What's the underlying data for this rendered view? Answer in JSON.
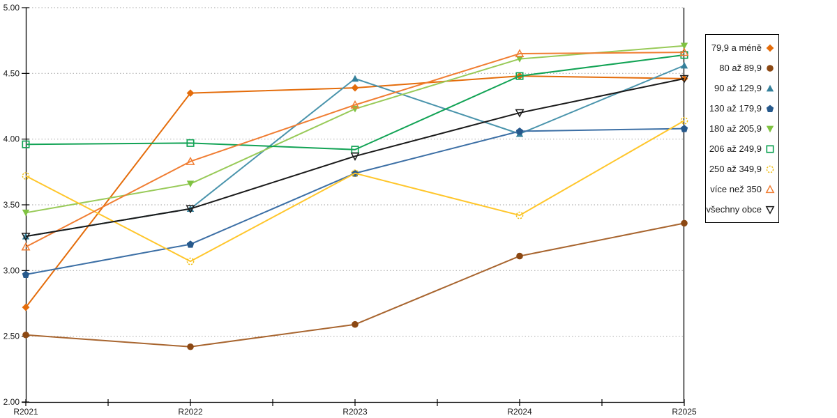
{
  "chart_data": {
    "type": "line",
    "title": "",
    "xlabel": "",
    "ylabel": "",
    "categories": [
      "R2021",
      "R2022",
      "R2023",
      "R2024",
      "R2025"
    ],
    "ylim": [
      2.0,
      5.0
    ],
    "ytick_step": 0.5,
    "ytick_labels": [
      "2.00",
      "2.50",
      "3.00",
      "3.50",
      "4.00",
      "4.50",
      "5.00"
    ],
    "grid": "horizontal dotted lines at each 0.50 step",
    "legend_position": "right outside, boxed, marker to the right of label",
    "series": [
      {
        "name": "79,9 a méně",
        "marker": "diamond",
        "line_color": "#E46C0A",
        "marker_color": "#E46C0A",
        "values": [
          2.72,
          4.35,
          4.39,
          4.48,
          4.46
        ]
      },
      {
        "name": "80 až 89,9",
        "marker": "circle",
        "line_color": "#A8652F",
        "marker_color": "#8C4813",
        "values": [
          2.51,
          2.42,
          2.59,
          3.11,
          3.36
        ]
      },
      {
        "name": "90 až 129,9",
        "marker": "triangle-up",
        "line_color": "#4A94AC",
        "marker_color": "#35809B",
        "values": [
          3.26,
          3.47,
          4.46,
          4.04,
          4.56
        ]
      },
      {
        "name": "130 až 179,9",
        "marker": "pentagon",
        "line_color": "#3C6FA5",
        "marker_color": "#27598C",
        "values": [
          2.97,
          3.2,
          3.74,
          4.06,
          4.08
        ]
      },
      {
        "name": "180 až 205,9",
        "marker": "triangle-down",
        "line_color": "#98CA58",
        "marker_color": "#7FC241",
        "values": [
          3.44,
          3.66,
          4.23,
          4.61,
          4.71
        ]
      },
      {
        "name": "206 až 249,9",
        "marker": "square-open",
        "line_color": "#12A355",
        "marker_color": "#12A355",
        "values": [
          3.96,
          3.97,
          3.92,
          4.48,
          4.64
        ]
      },
      {
        "name": "250 až 349,9",
        "marker": "circle-open-dashed",
        "line_color": "#FFC62B",
        "marker_color": "#EFBE13",
        "values": [
          3.72,
          3.07,
          3.74,
          3.42,
          4.14
        ]
      },
      {
        "name": "více než 350",
        "marker": "triangle-up-open",
        "line_color": "#F07D32",
        "marker_color": "#F07D32",
        "values": [
          3.18,
          3.83,
          4.26,
          4.65,
          4.66
        ]
      },
      {
        "name": "všechny obce",
        "marker": "triangle-down-open",
        "line_color": "#1A1A1A",
        "marker_color": "#1A1A1A",
        "values": [
          3.26,
          3.47,
          3.87,
          4.2,
          4.46
        ]
      }
    ]
  },
  "colors": {
    "background": "#FFFFFF",
    "grid": "#B3B3B3",
    "axis": "#000000",
    "text": "#1A1A1A",
    "legend_border": "#000000"
  }
}
